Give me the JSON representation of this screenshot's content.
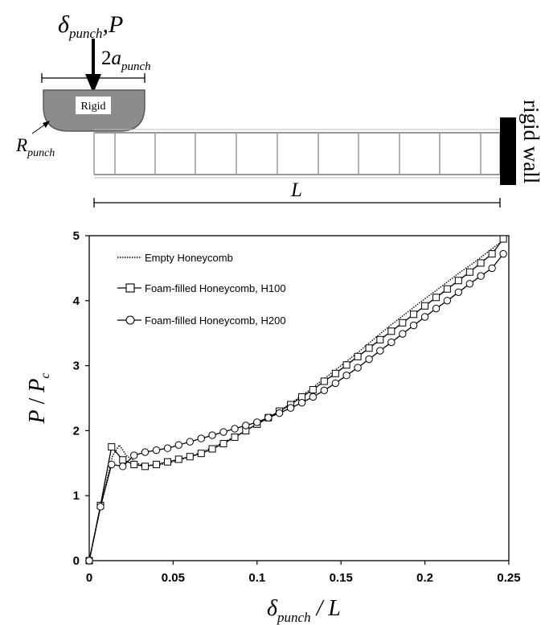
{
  "schematic": {
    "load_symbol": "δ",
    "load_subscript": "punch",
    "load_separator": ",",
    "load_force": "P",
    "width_prefix": "2",
    "width_symbol": "a",
    "width_subscript": "punch",
    "punch_label": "Rigid",
    "radius_symbol": "R",
    "radius_subscript": "punch",
    "wall_label": "rigid wall",
    "length_label": "L"
  },
  "chart_data": {
    "type": "line",
    "xlabel": {
      "symbol": "δ",
      "subscript": "punch",
      "rest": " / L"
    },
    "ylabel": {
      "numer": "P",
      "sep": " / ",
      "denom": "P",
      "denom_sub": "c"
    },
    "xlim": [
      0,
      0.25
    ],
    "ylim": [
      0,
      5
    ],
    "xticks": [
      0,
      0.05,
      0.1,
      0.15,
      0.2,
      0.25
    ],
    "xtick_labels": [
      "0",
      "0.05",
      "0.1",
      "0.15",
      "0.2",
      "0.25"
    ],
    "yticks": [
      0,
      1,
      2,
      3,
      4,
      5
    ],
    "ytick_labels": [
      "0",
      "1",
      "2",
      "3",
      "4",
      "5"
    ],
    "grid": false,
    "legend_position": "top-left",
    "series": [
      {
        "name": "Empty Honeycomb",
        "marker": "none",
        "style": "dotted",
        "x": [
          0,
          0.007,
          0.014,
          0.018,
          0.022,
          0.03,
          0.04,
          0.05,
          0.06,
          0.07,
          0.08,
          0.09,
          0.1,
          0.11,
          0.12,
          0.13,
          0.14,
          0.15,
          0.16,
          0.17,
          0.18,
          0.19,
          0.2,
          0.21,
          0.22,
          0.23,
          0.24,
          0.248
        ],
        "y": [
          0,
          0.85,
          1.62,
          1.78,
          1.62,
          1.48,
          1.46,
          1.52,
          1.6,
          1.7,
          1.82,
          1.95,
          2.1,
          2.25,
          2.42,
          2.6,
          2.8,
          3.0,
          3.2,
          3.42,
          3.63,
          3.83,
          4.03,
          4.22,
          4.42,
          4.6,
          4.8,
          4.95
        ]
      },
      {
        "name": "Foam-filled Honeycomb, H100",
        "marker": "square",
        "style": "solid",
        "x": [
          0,
          0.0067,
          0.0133,
          0.02,
          0.0267,
          0.0333,
          0.04,
          0.0467,
          0.0533,
          0.06,
          0.0667,
          0.0733,
          0.08,
          0.0867,
          0.0933,
          0.1,
          0.1067,
          0.1133,
          0.12,
          0.1267,
          0.1333,
          0.14,
          0.1467,
          0.1533,
          0.16,
          0.1667,
          0.1733,
          0.18,
          0.1867,
          0.1933,
          0.2,
          0.2067,
          0.2133,
          0.22,
          0.2267,
          0.2333,
          0.24,
          0.2467
        ],
        "y": [
          0,
          0.85,
          1.75,
          1.55,
          1.48,
          1.45,
          1.48,
          1.52,
          1.56,
          1.6,
          1.65,
          1.72,
          1.8,
          1.9,
          2.0,
          2.1,
          2.2,
          2.3,
          2.4,
          2.52,
          2.63,
          2.76,
          2.88,
          3.01,
          3.14,
          3.27,
          3.4,
          3.53,
          3.66,
          3.79,
          3.92,
          4.05,
          4.18,
          4.31,
          4.44,
          4.58,
          4.72,
          4.95
        ]
      },
      {
        "name": "Foam-filled Honeycomb, H200",
        "marker": "circle",
        "style": "solid",
        "x": [
          0,
          0.0067,
          0.0133,
          0.02,
          0.0267,
          0.0333,
          0.04,
          0.0467,
          0.0533,
          0.06,
          0.0667,
          0.0733,
          0.08,
          0.0867,
          0.0933,
          0.1,
          0.1067,
          0.1133,
          0.12,
          0.1267,
          0.1333,
          0.14,
          0.1467,
          0.1533,
          0.16,
          0.1667,
          0.1733,
          0.18,
          0.1867,
          0.1933,
          0.2,
          0.2067,
          0.2133,
          0.22,
          0.2267,
          0.2333,
          0.24,
          0.2467
        ],
        "y": [
          0,
          0.83,
          1.48,
          1.45,
          1.62,
          1.67,
          1.7,
          1.73,
          1.78,
          1.83,
          1.88,
          1.93,
          1.98,
          2.03,
          2.08,
          2.13,
          2.2,
          2.27,
          2.35,
          2.43,
          2.52,
          2.62,
          2.73,
          2.85,
          2.97,
          3.1,
          3.23,
          3.36,
          3.49,
          3.62,
          3.75,
          3.88,
          4.0,
          4.13,
          4.26,
          4.38,
          4.5,
          4.72
        ]
      }
    ]
  }
}
